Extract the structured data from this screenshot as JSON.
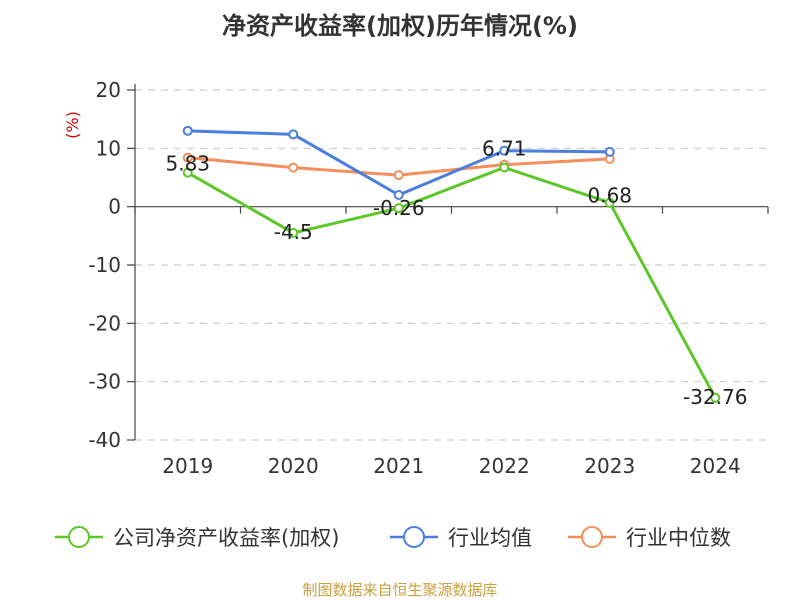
{
  "chart_data": {
    "type": "line",
    "title": "净资产收益率(加权)历年情况(%)",
    "ylabel": "(%)",
    "categories": [
      "2019",
      "2020",
      "2021",
      "2022",
      "2023",
      "2024"
    ],
    "ylim": [
      -40,
      20
    ],
    "yticks": [
      20,
      10,
      0,
      -10,
      -20,
      -30,
      -40
    ],
    "grid": true,
    "legend_position": "bottom",
    "series": [
      {
        "name": "公司净资产收益率(加权)",
        "color": "#5dc629",
        "marker": "hollow-circle",
        "values": [
          5.83,
          -4.5,
          -0.26,
          6.71,
          0.68,
          -32.76
        ]
      },
      {
        "name": "行业均值",
        "color": "#4a7ee0",
        "marker": "hollow-circle",
        "values": [
          13.0,
          12.4,
          2.0,
          9.6,
          9.4,
          null
        ]
      },
      {
        "name": "行业中位数",
        "color": "#f58d5c",
        "marker": "hollow-circle",
        "values": [
          8.4,
          6.7,
          5.4,
          7.2,
          8.2,
          null
        ]
      }
    ],
    "data_labels": [
      "5.83",
      "-4.5",
      "-0.26",
      "6.71",
      "0.68",
      "-32.76"
    ]
  },
  "source": "制图数据来自恒生聚源数据库"
}
